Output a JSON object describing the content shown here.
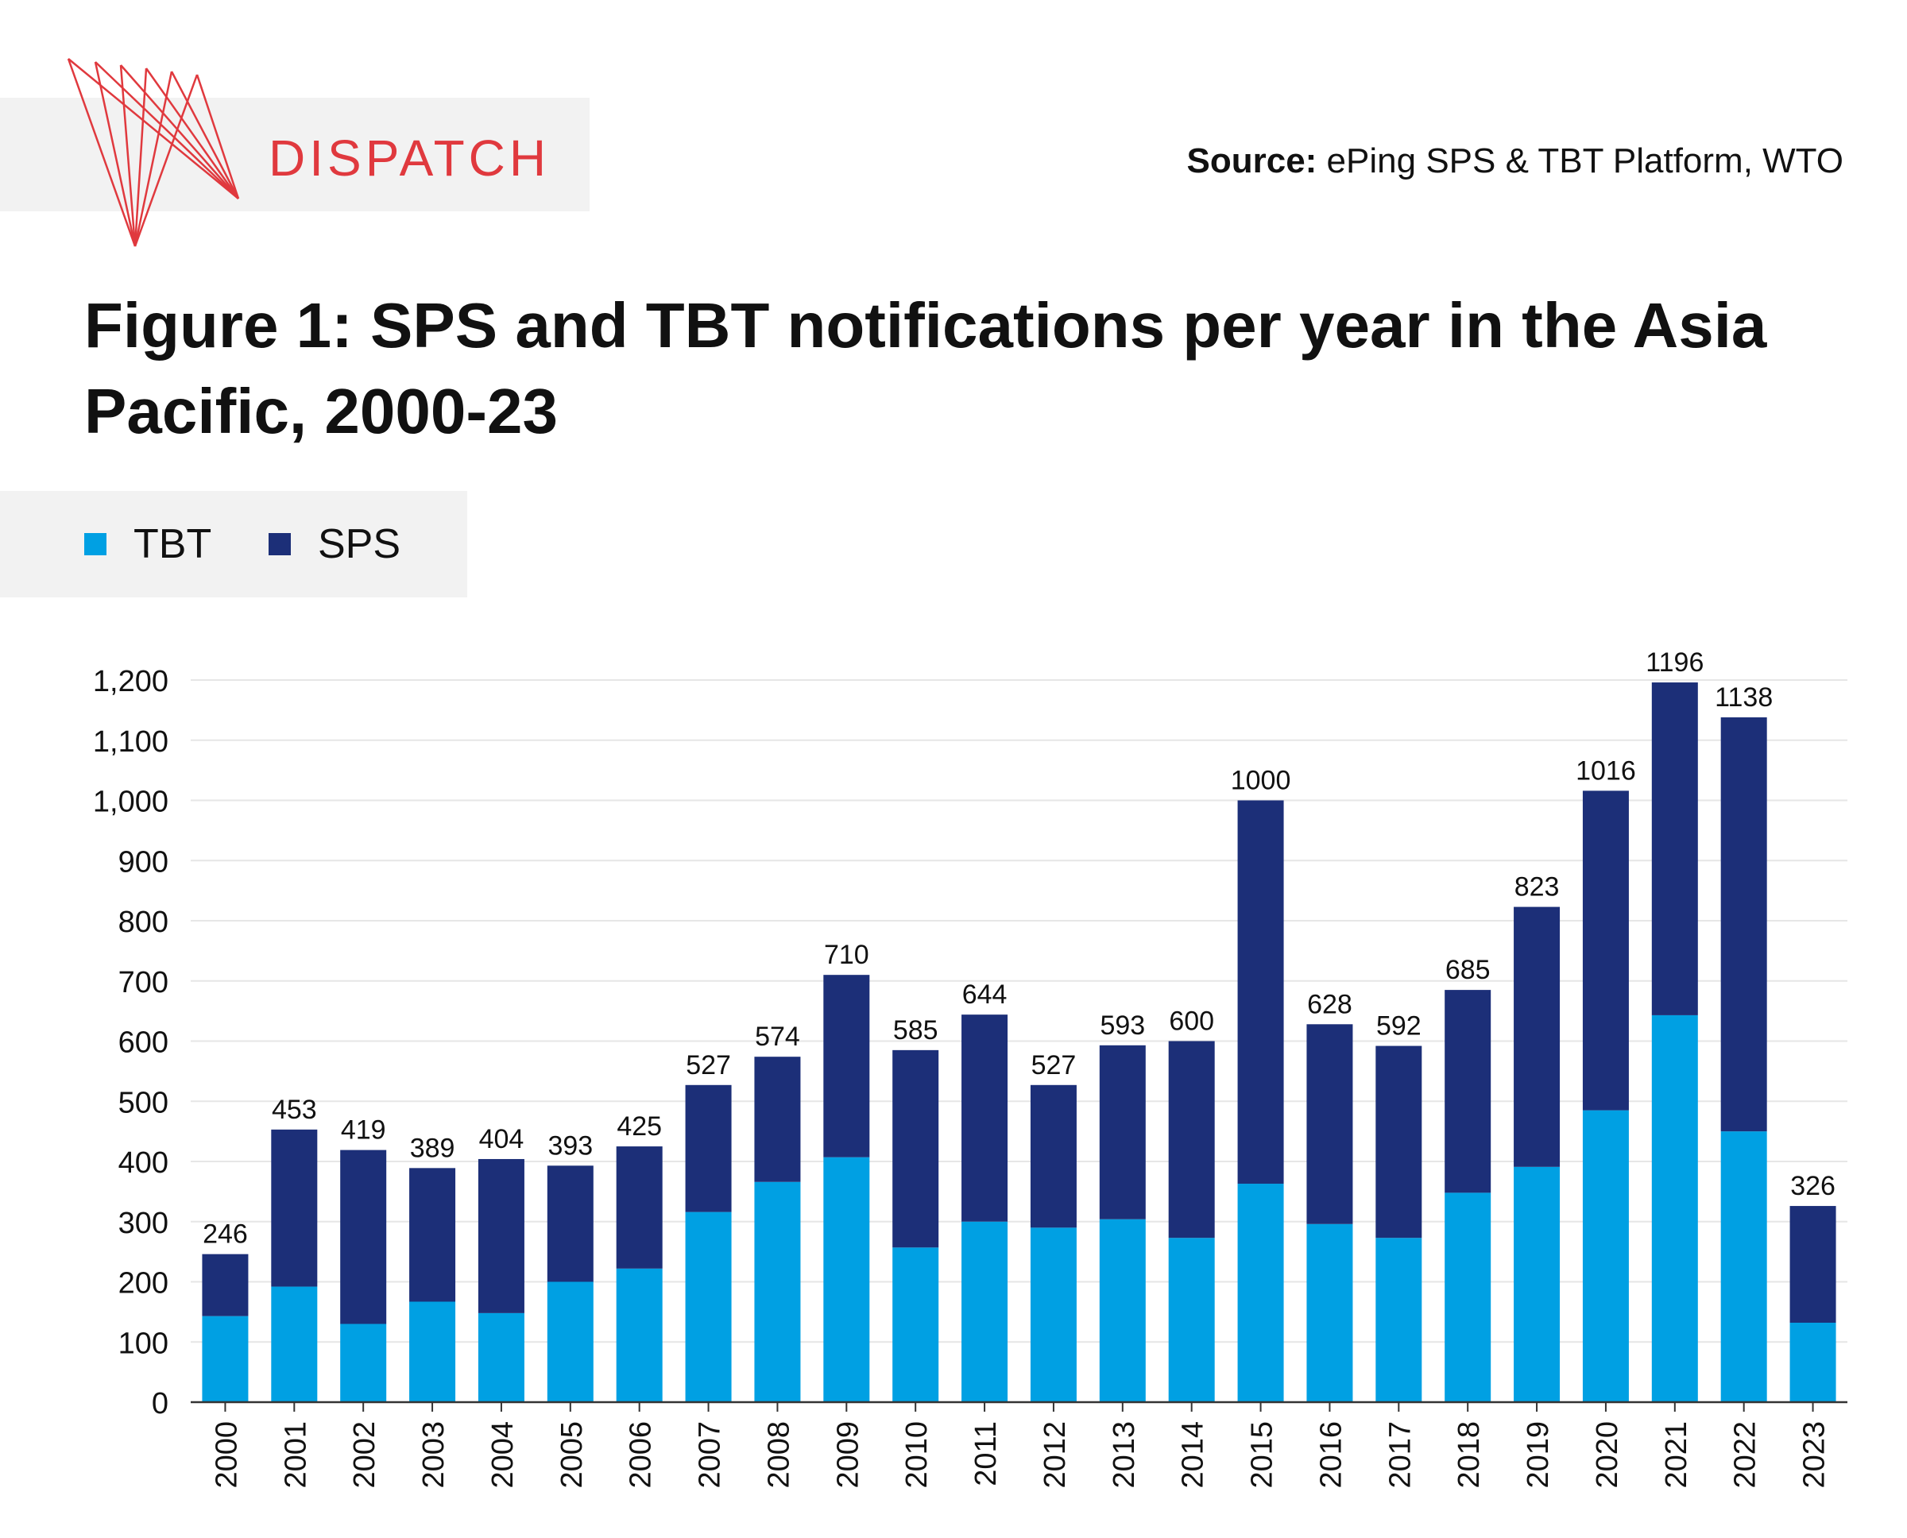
{
  "header": {
    "brand": "DISPATCH",
    "source_label": "Source:",
    "source_text": " ePing SPS & TBT Platform, WTO",
    "title": "Figure 1: SPS and TBT notifications per year in the Asia Pacific, 2000-23"
  },
  "legend": {
    "items": [
      {
        "label": "TBT",
        "color": "#00a0e3"
      },
      {
        "label": "SPS",
        "color": "#1c2f78"
      }
    ]
  },
  "colors": {
    "brand": "#e0393e",
    "tbt": "#00a0e3",
    "sps": "#1c2f78"
  },
  "chart_data": {
    "type": "bar",
    "stacked": true,
    "title": "Figure 1: SPS and TBT notifications per year in the Asia Pacific, 2000-23",
    "xlabel": "",
    "ylabel": "",
    "ylim": [
      0,
      1200
    ],
    "yticks": [
      0,
      100,
      200,
      300,
      400,
      500,
      600,
      700,
      800,
      900,
      1000,
      1100,
      1200
    ],
    "ytick_labels": [
      "0",
      "100",
      "200",
      "300",
      "400",
      "500",
      "600",
      "700",
      "800",
      "900",
      "1,000",
      "1,100",
      "1,200"
    ],
    "categories": [
      "2000",
      "2001",
      "2002",
      "2003",
      "2004",
      "2005",
      "2006",
      "2007",
      "2008",
      "2009",
      "2010",
      "2011",
      "2012",
      "2013",
      "2014",
      "2015",
      "2016",
      "2017",
      "2018",
      "2019",
      "2020",
      "2021",
      "2022",
      "2023"
    ],
    "series": [
      {
        "name": "TBT",
        "values": [
          143,
          192,
          130,
          167,
          148,
          200,
          222,
          316,
          366,
          407,
          257,
          300,
          290,
          304,
          273,
          363,
          296,
          273,
          348,
          391,
          485,
          643,
          450,
          132
        ]
      },
      {
        "name": "SPS",
        "values": [
          103,
          261,
          289,
          222,
          256,
          193,
          203,
          211,
          208,
          303,
          328,
          344,
          237,
          289,
          327,
          637,
          332,
          319,
          337,
          432,
          531,
          553,
          688,
          194
        ]
      }
    ],
    "totals": [
      246,
      453,
      419,
      389,
      404,
      393,
      425,
      527,
      574,
      710,
      585,
      644,
      527,
      593,
      600,
      1000,
      628,
      592,
      685,
      823,
      1016,
      1196,
      1138,
      326
    ],
    "legend_position": "top-left",
    "grid": true
  }
}
